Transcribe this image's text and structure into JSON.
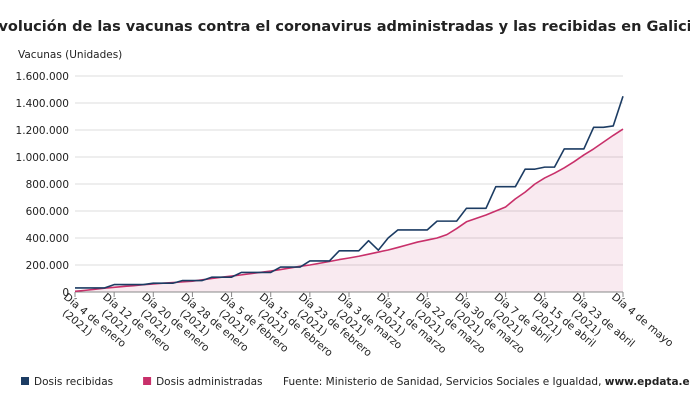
{
  "chart_data": {
    "type": "line",
    "title": "Evolución de las vacunas contra el coronavirus administradas y las recibidas en Galicia",
    "y_label": "Vacunas (Unidades)",
    "source": "Fuente: Ministerio de Sanidad, Servicios Sociales e Igualdad,",
    "source_link": "www.epdata.es",
    "categories": [
      "Día 4 de enero (2021)",
      null,
      null,
      null,
      "Día 12 de enero (2021)",
      null,
      null,
      null,
      "Día 20 de enero (2021)",
      null,
      null,
      null,
      "Día 28 de enero (2021)",
      null,
      null,
      null,
      "Día 5 de febrero (2021)",
      null,
      null,
      null,
      "Día 15 de febrero (2021)",
      null,
      null,
      null,
      "Día 23 de febrero (2021)",
      null,
      null,
      null,
      "Día 3 de marzo (2021)",
      null,
      null,
      null,
      "Día 11 de marzo (2021)",
      null,
      null,
      null,
      "Día 22 de marzo (2021)",
      null,
      null,
      null,
      "Día 30 de marzo (2021)",
      null,
      null,
      null,
      "Día 7 de abril (2021)",
      null,
      null,
      null,
      "Día 15 de abril (2021)",
      null,
      null,
      null,
      "Día 23 de abril (2021)",
      null,
      null,
      null,
      "Día 4 de mayo"
    ],
    "series": [
      {
        "name": "Dosis recibidas",
        "color": "#1c3c63",
        "values": [
          30000,
          30000,
          30000,
          30000,
          55000,
          55000,
          55000,
          55000,
          65000,
          65000,
          65000,
          85000,
          85000,
          85000,
          110000,
          110000,
          110000,
          145000,
          145000,
          145000,
          145000,
          185000,
          185000,
          185000,
          230000,
          230000,
          230000,
          305000,
          305000,
          305000,
          380000,
          310000,
          400000,
          460000,
          460000,
          460000,
          460000,
          525000,
          525000,
          525000,
          620000,
          620000,
          620000,
          780000,
          780000,
          780000,
          910000,
          910000,
          925000,
          925000,
          1060000,
          1060000,
          1060000,
          1220000,
          1220000,
          1230000,
          1450000
        ]
      },
      {
        "name": "Dosis administradas",
        "color": "#c8306a",
        "values": [
          5000,
          12000,
          20000,
          28000,
          35000,
          41000,
          47000,
          54000,
          60000,
          65000,
          70000,
          75000,
          80000,
          90000,
          100000,
          110000,
          118000,
          127000,
          136000,
          146000,
          155000,
          166000,
          178000,
          190000,
          200000,
          213000,
          226000,
          240000,
          252000,
          265000,
          280000,
          296000,
          311000,
          330000,
          350000,
          370000,
          385000,
          400000,
          425000,
          470000,
          520000,
          545000,
          570000,
          600000,
          630000,
          690000,
          740000,
          800000,
          845000,
          880000,
          920000,
          965000,
          1015000,
          1060000,
          1110000,
          1160000,
          1207000
        ]
      }
    ],
    "ylim": [
      0,
      1600000
    ],
    "yticks": [
      0,
      {
        "value": 200000,
        "label": "200.000"
      },
      {
        "value": 400000,
        "label": "400.000"
      },
      {
        "value": 600000,
        "label": "600.000"
      },
      {
        "value": 800000,
        "label": "800.000"
      },
      {
        "value": 1000000,
        "label": "1.000.000"
      },
      {
        "value": 1200000,
        "label": "1.200.000"
      },
      {
        "value": 1400000,
        "label": "1.400.000"
      },
      {
        "value": 1600000,
        "label": "1.600.000"
      }
    ],
    "grid": true,
    "area_fill": true
  }
}
